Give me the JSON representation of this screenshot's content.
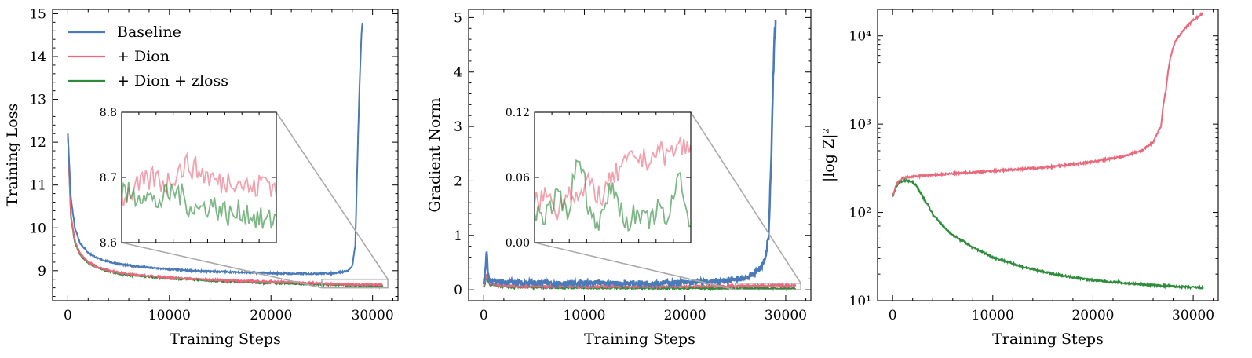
{
  "series_styles": [
    {
      "name": "Baseline",
      "color": "#4a7ab7"
    },
    {
      "name": "+ Dion",
      "color": "#e8697d"
    },
    {
      "name": "+ Dion + zloss",
      "color": "#2e8b3a"
    }
  ],
  "legend": {
    "items": [
      "Baseline",
      "+ Dion",
      "+ Dion + zloss"
    ],
    "placement": "top-left of first chart"
  },
  "chart_data": [
    {
      "type": "line",
      "title": "",
      "xlabel": "Training Steps",
      "ylabel": "Training Loss",
      "xlim": [
        -1500,
        32500
      ],
      "ylim": [
        8.3,
        15.1
      ],
      "xticks": [
        0,
        10000,
        20000,
        30000
      ],
      "xtick_labels": [
        "0",
        "10000",
        "20000",
        "30000"
      ],
      "yticks": [
        9,
        10,
        11,
        12,
        13,
        14,
        15
      ],
      "ytick_labels": [
        "9",
        "10",
        "11",
        "12",
        "13",
        "14",
        "15"
      ],
      "series": [
        {
          "name": "Baseline",
          "x": [
            0,
            300,
            700,
            1200,
            2000,
            3000,
            4500,
            6000,
            8000,
            10000,
            13000,
            16000,
            19000,
            22000,
            24000,
            26000,
            27000,
            27600,
            28000,
            28300,
            28500,
            28700,
            28900,
            29000
          ],
          "y": [
            12.2,
            10.7,
            10.0,
            9.65,
            9.42,
            9.28,
            9.18,
            9.12,
            9.07,
            9.03,
            8.99,
            8.97,
            8.95,
            8.93,
            8.93,
            8.94,
            8.97,
            9.0,
            9.1,
            9.6,
            11.5,
            13.2,
            14.5,
            14.8
          ]
        },
        {
          "name": "+ Dion",
          "x": [
            0,
            300,
            700,
            1200,
            2000,
            3000,
            4500,
            6000,
            8000,
            10000,
            13000,
            16000,
            19000,
            22000,
            25000,
            28000,
            31000
          ],
          "y": [
            12.2,
            10.3,
            9.7,
            9.4,
            9.2,
            9.08,
            8.98,
            8.92,
            8.88,
            8.84,
            8.8,
            8.77,
            8.75,
            8.73,
            8.7,
            8.68,
            8.67
          ]
        },
        {
          "name": "+ Dion + zloss",
          "x": [
            0,
            300,
            700,
            1200,
            2000,
            3000,
            4500,
            6000,
            8000,
            10000,
            13000,
            16000,
            19000,
            22000,
            25000,
            28000,
            31000
          ],
          "y": [
            12.2,
            10.25,
            9.65,
            9.37,
            9.18,
            9.06,
            8.96,
            8.9,
            8.86,
            8.82,
            8.78,
            8.75,
            8.72,
            8.7,
            8.68,
            8.66,
            8.64
          ]
        }
      ],
      "inset": {
        "xrange": [
          25000,
          31500
        ],
        "ylim": [
          8.6,
          8.8
        ],
        "yticks": [
          8.6,
          8.7,
          8.8
        ],
        "ytick_labels": [
          "8.6",
          "8.7",
          "8.8"
        ],
        "series": [
          {
            "name": "+ Dion",
            "y": [
              8.67,
              8.68,
              8.69,
              8.7,
              8.69,
              8.71,
              8.72,
              8.71,
              8.7,
              8.69,
              8.7,
              8.69,
              8.68,
              8.7,
              8.68
            ]
          },
          {
            "name": "+ Dion + zloss",
            "y": [
              8.68,
              8.67,
              8.68,
              8.66,
              8.67,
              8.68,
              8.66,
              8.65,
              8.66,
              8.65,
              8.64,
              8.65,
              8.64,
              8.63,
              8.64
            ]
          }
        ]
      }
    },
    {
      "type": "line",
      "title": "",
      "xlabel": "Training Steps",
      "ylabel": "Gradient Norm",
      "xlim": [
        -1500,
        32500
      ],
      "ylim": [
        -0.2,
        5.15
      ],
      "xticks": [
        0,
        10000,
        20000,
        30000
      ],
      "xtick_labels": [
        "0",
        "10000",
        "20000",
        "30000"
      ],
      "yticks": [
        0,
        1,
        2,
        3,
        4,
        5
      ],
      "ytick_labels": [
        "0",
        "1",
        "2",
        "3",
        "4",
        "5"
      ],
      "series": [
        {
          "name": "Baseline",
          "x": [
            0,
            200,
            300,
            400,
            600,
            1000,
            2000,
            4000,
            8000,
            12000,
            16000,
            20000,
            23000,
            25000,
            26500,
            27500,
            28000,
            28300,
            28500,
            28700,
            28900,
            29000
          ],
          "y": [
            0.1,
            0.45,
            0.72,
            0.3,
            0.2,
            0.16,
            0.14,
            0.13,
            0.12,
            0.12,
            0.12,
            0.13,
            0.15,
            0.18,
            0.25,
            0.4,
            0.6,
            1.0,
            2.0,
            3.5,
            4.6,
            4.9
          ]
        },
        {
          "name": "+ Dion",
          "x": [
            0,
            300,
            600,
            1200,
            3000,
            8000,
            14000,
            20000,
            25000,
            28000,
            31000
          ],
          "y": [
            0.05,
            0.3,
            0.12,
            0.09,
            0.07,
            0.06,
            0.06,
            0.06,
            0.07,
            0.08,
            0.08
          ]
        },
        {
          "name": "+ Dion + zloss",
          "x": [
            0,
            300,
            600,
            1200,
            3000,
            8000,
            14000,
            20000,
            25000,
            28000,
            31000
          ],
          "y": [
            0.04,
            0.22,
            0.1,
            0.07,
            0.05,
            0.04,
            0.035,
            0.03,
            0.03,
            0.025,
            0.02
          ]
        }
      ],
      "inset": {
        "xrange": [
          25000,
          31500
        ],
        "ylim": [
          0.0,
          0.12
        ],
        "yticks": [
          0.0,
          0.06,
          0.12
        ],
        "ytick_labels": [
          "0.00",
          "0.06",
          "0.12"
        ],
        "series": [
          {
            "name": "+ Dion",
            "y": [
              0.035,
              0.045,
              0.03,
              0.05,
              0.04,
              0.055,
              0.04,
              0.06,
              0.07,
              0.08,
              0.075,
              0.085,
              0.08,
              0.09,
              0.085
            ]
          },
          {
            "name": "+ Dion + zloss",
            "y": [
              0.03,
              0.025,
              0.04,
              0.03,
              0.085,
              0.025,
              0.02,
              0.055,
              0.02,
              0.025,
              0.018,
              0.03,
              0.02,
              0.065,
              0.015
            ]
          }
        ]
      }
    },
    {
      "type": "line",
      "title": "",
      "xlabel": "Training Steps",
      "ylabel": "|log Z|²",
      "xlim": [
        -1500,
        32500
      ],
      "ylim_log10": [
        1.0,
        4.3
      ],
      "xticks": [
        0,
        10000,
        20000,
        30000
      ],
      "xtick_labels": [
        "0",
        "10000",
        "20000",
        "30000"
      ],
      "yticks": [
        10,
        100,
        1000,
        10000
      ],
      "ytick_labels": [
        "10¹",
        "10²",
        "10³",
        "10⁴"
      ],
      "series": [
        {
          "name": "+ Dion",
          "x": [
            0,
            400,
            1000,
            2000,
            4000,
            8000,
            12000,
            16000,
            20000,
            23000,
            25000,
            26000,
            26800,
            27300,
            27700,
            28200,
            29000,
            30000,
            31000
          ],
          "y": [
            150,
            210,
            245,
            255,
            265,
            285,
            305,
            330,
            375,
            430,
            510,
            620,
            950,
            2500,
            5500,
            8500,
            11500,
            15000,
            18000
          ]
        },
        {
          "name": "+ Dion + zloss",
          "x": [
            0,
            400,
            800,
            1400,
            2000,
            2500,
            3000,
            4000,
            5000,
            6000,
            8000,
            10000,
            13000,
            16000,
            20000,
            24000,
            28000,
            31000
          ],
          "y": [
            150,
            200,
            225,
            230,
            220,
            190,
            150,
            95,
            70,
            55,
            40,
            31,
            24,
            20,
            17,
            15.5,
            14.5,
            14
          ]
        }
      ]
    }
  ]
}
